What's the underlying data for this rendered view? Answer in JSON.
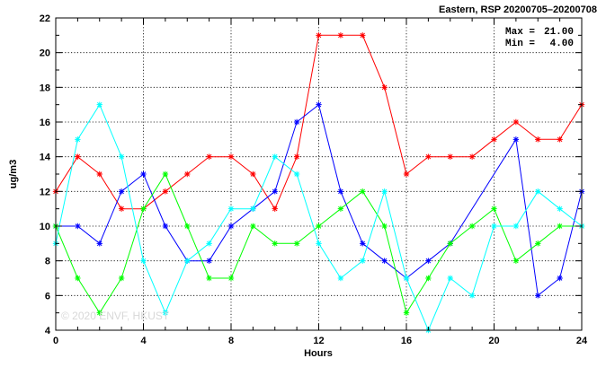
{
  "header": {
    "title": "Eastern, RSP 20200705–20200708",
    "max_label": "Max =",
    "max_value": "21.00",
    "min_label": "Min =",
    "min_value": "4.00",
    "watermark": "© 2020 ENVF, HKUST"
  },
  "chart_data": {
    "type": "line",
    "xlabel": "Hours",
    "ylabel": "ug/m3",
    "xlim": [
      0,
      24
    ],
    "ylim": [
      4,
      22
    ],
    "xticks": [
      0,
      4,
      8,
      12,
      16,
      20,
      24
    ],
    "yticks": [
      4,
      6,
      8,
      10,
      12,
      14,
      16,
      18,
      20,
      22
    ],
    "grid": true,
    "x": [
      0,
      1,
      2,
      3,
      4,
      5,
      6,
      7,
      8,
      9,
      10,
      11,
      12,
      13,
      14,
      15,
      16,
      17,
      18,
      19,
      20,
      21,
      22,
      23,
      24
    ],
    "series": [
      {
        "color": "#ff0000",
        "values": [
          12,
          14,
          13,
          11,
          11,
          12,
          13,
          14,
          14,
          13,
          11,
          14,
          21,
          21,
          21,
          18,
          13,
          14,
          14,
          14,
          15,
          16,
          15,
          15,
          17
        ]
      },
      {
        "color": "#0000ff",
        "values": [
          10,
          10,
          9,
          12,
          13,
          10,
          8,
          8,
          10,
          11,
          12,
          16,
          17,
          12,
          9,
          8,
          7,
          8,
          9,
          null,
          null,
          15,
          6,
          7,
          12
        ]
      },
      {
        "color": "#00ff00",
        "values": [
          10,
          7,
          5,
          7,
          11,
          13,
          10,
          7,
          7,
          10,
          9,
          9,
          10,
          11,
          12,
          10,
          5,
          7,
          9,
          10,
          11,
          8,
          9,
          10,
          10
        ]
      },
      {
        "color": "#00ffff",
        "values": [
          9,
          15,
          17,
          14,
          8,
          5,
          8,
          9,
          11,
          11,
          14,
          13,
          9,
          7,
          8,
          12,
          7,
          4,
          7,
          6,
          10,
          10,
          12,
          11,
          10
        ]
      }
    ]
  }
}
